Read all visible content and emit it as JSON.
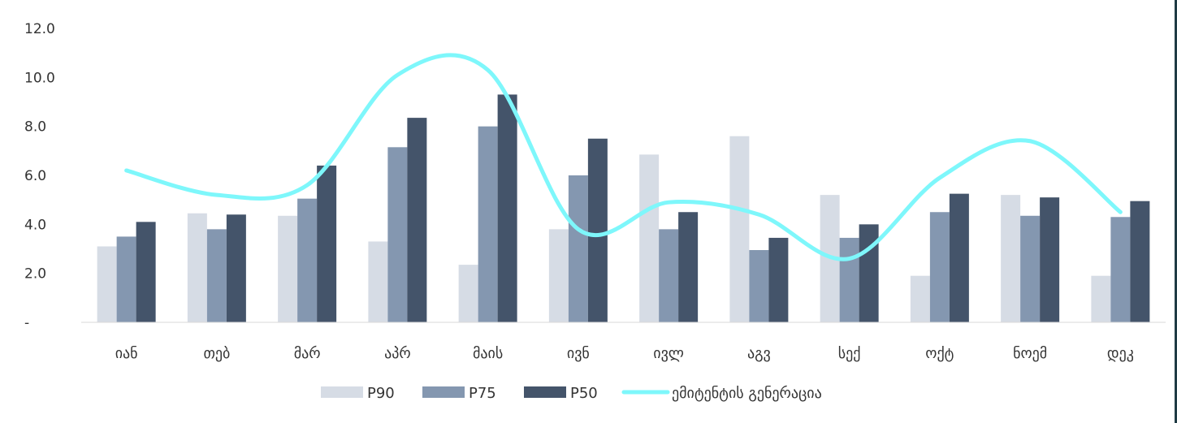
{
  "chart_data": {
    "type": "bar",
    "categories": [
      "იან",
      "თებ",
      "მარ",
      "აპრ",
      "მაის",
      "ივნ",
      "ივლ",
      "აგვ",
      "სექ",
      "ოქტ",
      "ნოემ",
      "დეკ"
    ],
    "series": [
      {
        "name": "P90",
        "type": "bar",
        "color": "#d6dce5",
        "values": [
          3.1,
          4.45,
          4.35,
          3.3,
          2.35,
          3.8,
          6.85,
          7.6,
          5.2,
          1.9,
          5.2,
          1.9
        ]
      },
      {
        "name": "P75",
        "type": "bar",
        "color": "#8497b0",
        "values": [
          3.5,
          3.8,
          5.05,
          7.15,
          8.0,
          6.0,
          3.8,
          2.95,
          3.45,
          4.5,
          4.35,
          4.3
        ]
      },
      {
        "name": "P50",
        "type": "bar",
        "color": "#44546a",
        "values": [
          4.1,
          4.4,
          6.4,
          8.35,
          9.3,
          7.5,
          4.5,
          3.45,
          4.0,
          5.25,
          5.1,
          4.95
        ]
      },
      {
        "name": "ემიტენტის გენერაცია",
        "type": "line",
        "color": "#7ef7fb",
        "values": [
          6.2,
          5.2,
          5.6,
          10.1,
          10.3,
          3.8,
          4.9,
          4.4,
          2.6,
          5.9,
          7.4,
          4.5
        ]
      }
    ],
    "y_ticks": [
      "-",
      "2.0",
      "4.0",
      "6.0",
      "8.0",
      "10.0",
      "12.0"
    ],
    "ylim": [
      0,
      12
    ],
    "legend": "bottom",
    "grid": false
  }
}
